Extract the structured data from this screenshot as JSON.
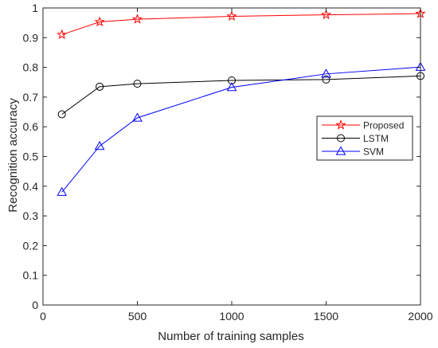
{
  "chart_data": {
    "type": "line",
    "xlabel": "Number of training samples",
    "ylabel": "Recognition accuracy",
    "xlim": [
      0,
      2000
    ],
    "ylim": [
      0,
      1
    ],
    "xticks": [
      0,
      500,
      1000,
      1500,
      2000
    ],
    "yticks": [
      0,
      0.1,
      0.2,
      0.3,
      0.4,
      0.5,
      0.6,
      0.7,
      0.8,
      0.9,
      1
    ],
    "grid": false,
    "legend_position": "center-right",
    "series": [
      {
        "name": "Proposed",
        "color": "#ff0000",
        "marker": "star",
        "x": [
          100,
          300,
          500,
          1000,
          1500,
          2000
        ],
        "y": [
          0.91,
          0.953,
          0.962,
          0.972,
          0.977,
          0.981
        ]
      },
      {
        "name": "LSTM",
        "color": "#000000",
        "marker": "circle",
        "x": [
          100,
          300,
          500,
          1000,
          1500,
          2000
        ],
        "y": [
          0.642,
          0.735,
          0.745,
          0.756,
          0.759,
          0.771
        ]
      },
      {
        "name": "SVM",
        "color": "#0000ff",
        "marker": "triangle",
        "x": [
          100,
          300,
          500,
          1000,
          1500,
          2000
        ],
        "y": [
          0.38,
          0.535,
          0.63,
          0.733,
          0.778,
          0.801
        ]
      }
    ]
  }
}
